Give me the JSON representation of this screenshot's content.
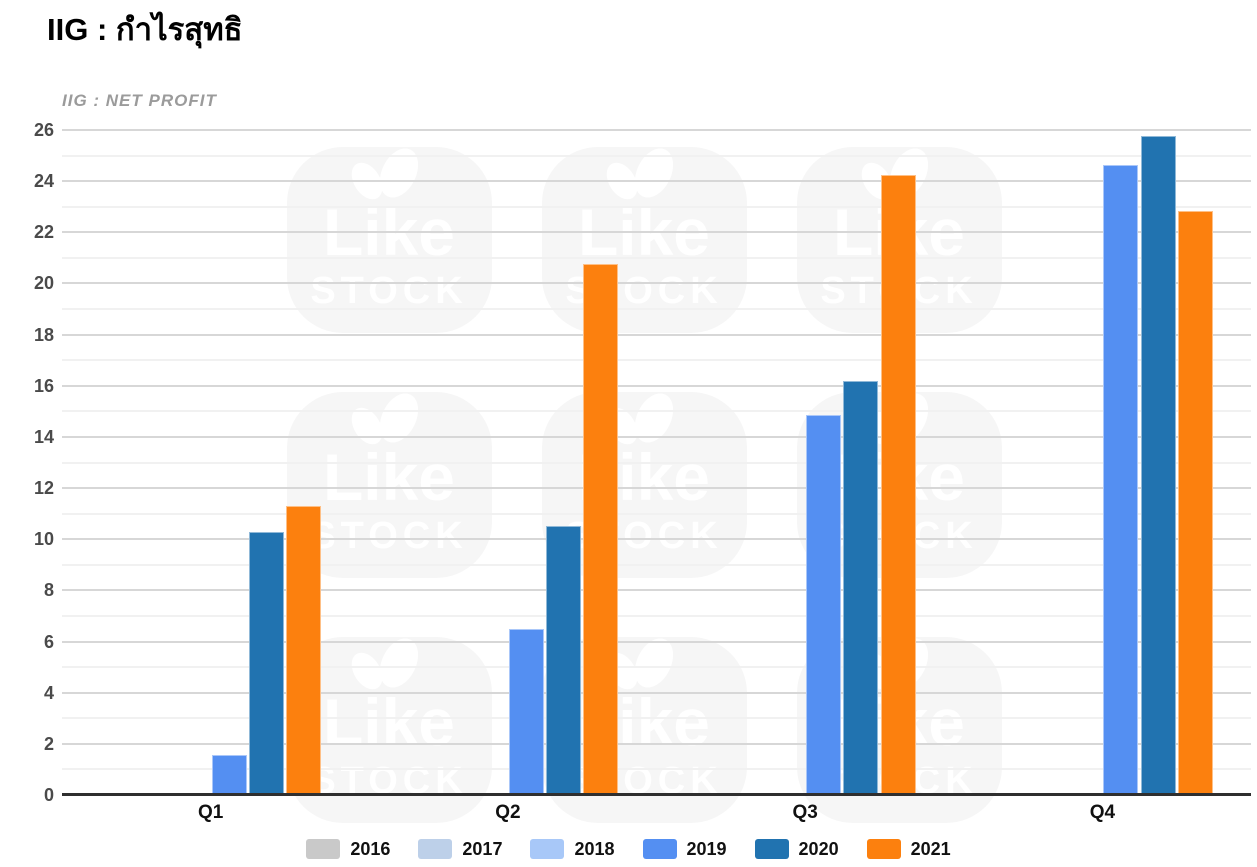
{
  "page": {
    "title": "IIG : กำไรสุทธิ"
  },
  "chart_data": {
    "type": "bar",
    "subtitle": "IIG : NET PROFIT",
    "categories": [
      "Q1",
      "Q2",
      "Q3",
      "Q4"
    ],
    "series": [
      {
        "name": "2016",
        "color": "#c9c9c9",
        "values": [
          0,
          0,
          0,
          0
        ]
      },
      {
        "name": "2017",
        "color": "#bdd0e9",
        "values": [
          0,
          0,
          0,
          0
        ]
      },
      {
        "name": "2018",
        "color": "#a8c8f8",
        "values": [
          0,
          0,
          0,
          0
        ]
      },
      {
        "name": "2019",
        "color": "#548ff2",
        "values": [
          1.55,
          6.5,
          14.85,
          24.65
        ]
      },
      {
        "name": "2020",
        "color": "#2173b0",
        "values": [
          10.3,
          10.5,
          16.2,
          25.75
        ]
      },
      {
        "name": "2021",
        "color": "#fc800e",
        "values": [
          11.3,
          20.75,
          24.25,
          22.85
        ]
      }
    ],
    "ylim": [
      0,
      26
    ],
    "ytick_step": 2,
    "minor_grid": true,
    "grid": true,
    "legend_position": "bottom"
  },
  "watermark": {
    "line1": "Like",
    "line2": "STOCK"
  },
  "colors": {
    "major_grid": "#d7d7d7",
    "minor_grid": "#f1f1f1",
    "axis_line": "#2f2f2f",
    "tick_label": "#4a4a4a",
    "title": "#000000",
    "subtitle": "#9b9b9b"
  }
}
